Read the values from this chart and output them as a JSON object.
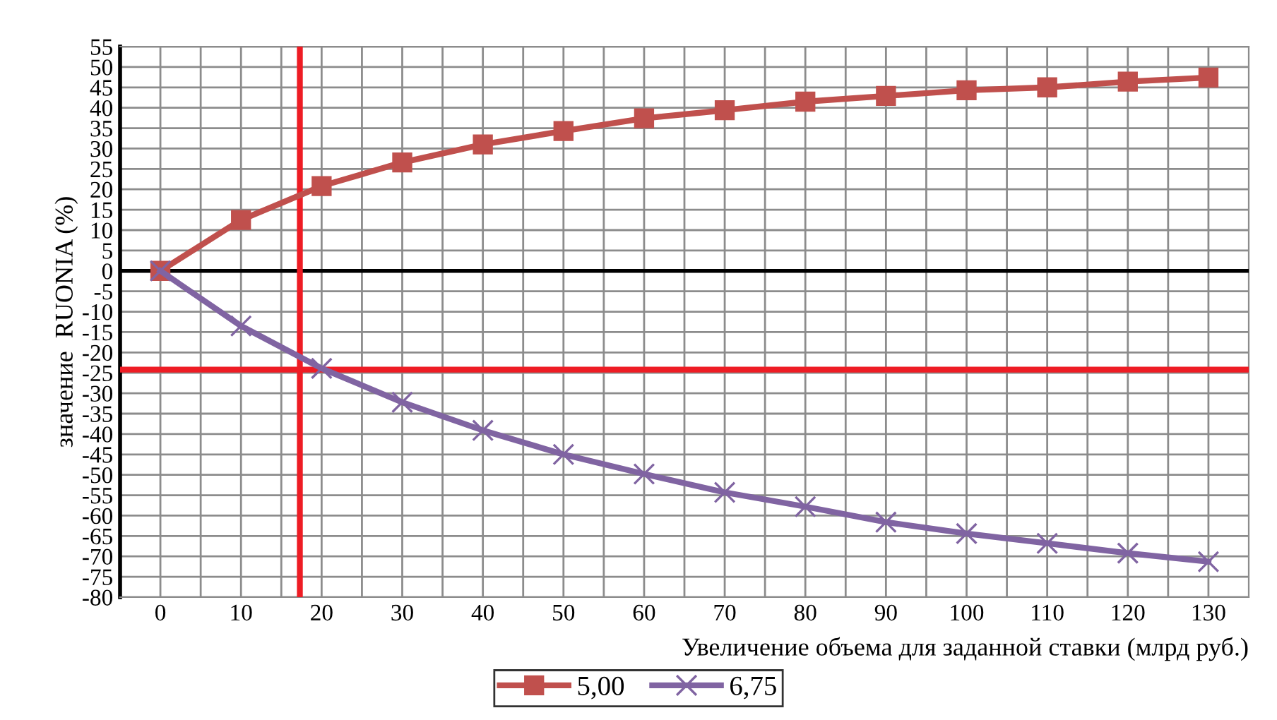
{
  "chart_data": {
    "type": "line",
    "xlabel": "Увеличение объема для заданной ставки (млрд руб.)",
    "ylabel": "значение  RUONIA (%)",
    "x": [
      0,
      10,
      20,
      30,
      40,
      50,
      60,
      70,
      80,
      90,
      100,
      110,
      120,
      130
    ],
    "series": [
      {
        "name": "5,00",
        "color": "#c0504d",
        "marker": "square",
        "values": [
          0,
          12.5,
          20.8,
          26.6,
          31,
          34.3,
          37.4,
          39.4,
          41.5,
          42.9,
          44.3,
          45,
          46.4,
          47.4
        ]
      },
      {
        "name": "6,75",
        "color": "#8064a2",
        "marker": "cross",
        "values": [
          0,
          -13.5,
          -23.9,
          -32.2,
          -39.1,
          -45,
          -49.8,
          -54.3,
          -57.8,
          -61.6,
          -64.4,
          -66.8,
          -69.2,
          -71.3
        ]
      }
    ],
    "xlim": [
      -5,
      135
    ],
    "xticks": [
      0,
      {
        "value": 5,
        "label": null
      },
      10,
      {
        "value": 15,
        "label": null
      },
      20,
      {
        "value": 25,
        "label": null
      },
      30,
      {
        "value": 35,
        "label": null
      },
      40,
      {
        "value": 45,
        "label": null
      },
      50,
      {
        "value": 55,
        "label": null
      },
      60,
      {
        "value": 65,
        "label": null
      },
      70,
      {
        "value": 75,
        "label": null
      },
      80,
      {
        "value": 85,
        "label": null
      },
      90,
      {
        "value": 95,
        "label": null
      },
      100,
      {
        "value": 105,
        "label": null
      },
      110,
      {
        "value": 115,
        "label": null
      },
      120,
      {
        "value": 125,
        "label": null
      },
      130
    ],
    "ylim": [
      -80,
      55
    ],
    "yticks": [
      -80,
      -75,
      -70,
      -65,
      -60,
      -55,
      -50,
      -45,
      -40,
      -35,
      -30,
      -25,
      -20,
      -15,
      -10,
      -5,
      0,
      5,
      10,
      15,
      20,
      25,
      30,
      35,
      40,
      45,
      50,
      55
    ],
    "ref_lines": [
      {
        "axis": "y",
        "value": 0,
        "color": "#000000"
      },
      {
        "axis": "x",
        "value": 17.3,
        "color": "#ee1c24"
      },
      {
        "axis": "y",
        "value": -24.2,
        "color": "#ee1c24"
      }
    ],
    "grid": true,
    "legend": "bottom",
    "line_style": "solid"
  }
}
